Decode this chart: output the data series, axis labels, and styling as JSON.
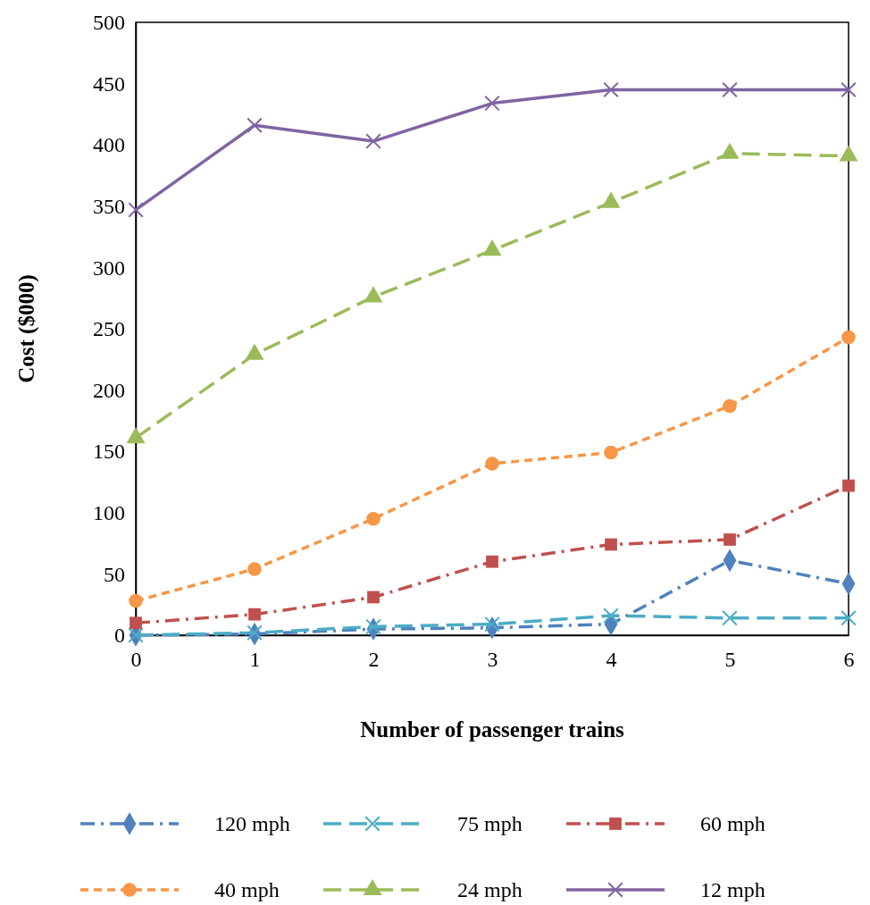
{
  "chart_data": {
    "type": "line",
    "xlabel": "Number of passenger trains",
    "ylabel": "Cost ($000)",
    "x": [
      0,
      1,
      2,
      3,
      4,
      5,
      6
    ],
    "xlim": [
      0,
      6
    ],
    "xticks": [
      0,
      1,
      2,
      3,
      4,
      5,
      6
    ],
    "ylim": [
      0,
      500
    ],
    "yticks": [
      0,
      50,
      100,
      150,
      200,
      250,
      300,
      350,
      400,
      450,
      500
    ],
    "grid": false,
    "legend": "bottom",
    "series": [
      {
        "name": "120 mph",
        "color": "#4f81bd",
        "marker": "diamond",
        "line_style": "dashdot",
        "values": [
          0,
          1,
          5,
          6,
          9,
          61,
          42
        ]
      },
      {
        "name": "75 mph",
        "color": "#4bacc6",
        "marker": "cross",
        "line_style": "longdash",
        "values": [
          0,
          2,
          7,
          9,
          16,
          14,
          14
        ]
      },
      {
        "name": "60 mph",
        "color": "#c0504d",
        "marker": "square",
        "line_style": "dashdot",
        "values": [
          10,
          17,
          31,
          60,
          74,
          78,
          122
        ]
      },
      {
        "name": "40 mph",
        "color": "#f79646",
        "marker": "circle",
        "line_style": "dashed",
        "values": [
          28,
          54,
          95,
          140,
          149,
          187,
          243
        ]
      },
      {
        "name": "24 mph",
        "color": "#9bbb59",
        "marker": "triangle",
        "line_style": "longdash",
        "values": [
          161,
          229,
          276,
          314,
          353,
          393,
          391
        ]
      },
      {
        "name": "12 mph",
        "color": "#8064a2",
        "marker": "cross",
        "line_style": "solid",
        "values": [
          347,
          416,
          403,
          434,
          445,
          445,
          445
        ]
      }
    ]
  }
}
